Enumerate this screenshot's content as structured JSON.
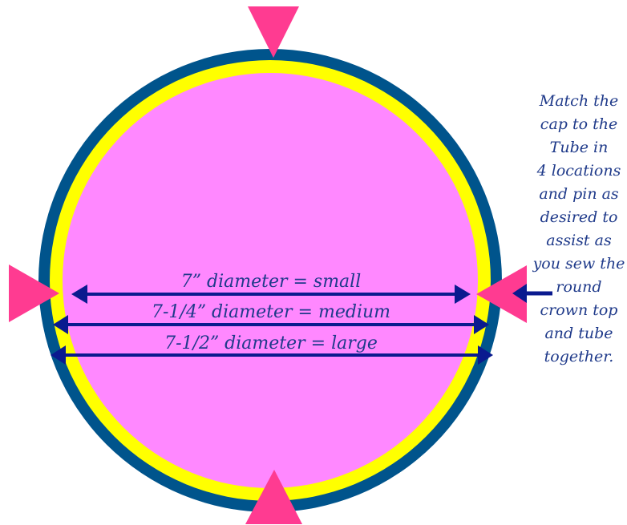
{
  "colors": {
    "outer_ring": "#00548c",
    "middle_ring": "#ffff00",
    "inner_disc": "#ff88ff",
    "markers": "#ff3b91",
    "arrows": "#0a1a8f",
    "text": "#1f3a8a"
  },
  "measurements": [
    {
      "label": "7” diameter = small",
      "size": "small",
      "diameter_in": 7
    },
    {
      "label": "7-1/4” diameter = medium",
      "size": "medium",
      "diameter_in": 7.25
    },
    {
      "label": "7-1/2” diameter = large",
      "size": "large",
      "diameter_in": 7.5
    }
  ],
  "markers": [
    {
      "name": "top-marker",
      "direction": "down"
    },
    {
      "name": "bottom-marker",
      "direction": "up"
    },
    {
      "name": "left-marker",
      "direction": "right"
    },
    {
      "name": "right-marker",
      "direction": "left"
    }
  ],
  "note": {
    "text": "Match the\ncap to the\nTube in\n4 locations\nand pin as\ndesired to\nassist  as\nyou sew the\nround\ncrown top\nand tube\ntogether."
  }
}
